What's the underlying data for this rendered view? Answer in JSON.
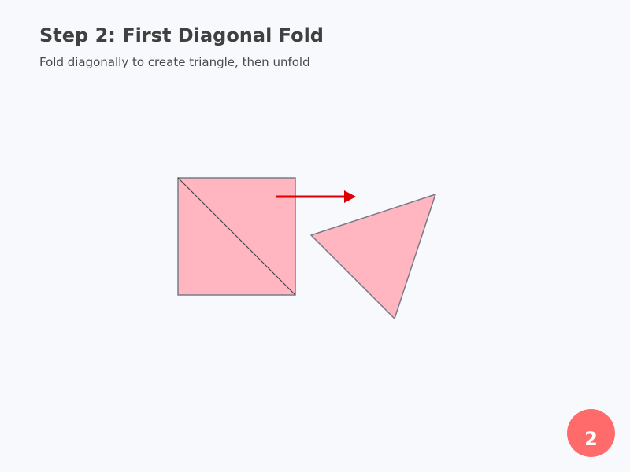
{
  "header": {
    "title": "Step 2: First Diagonal Fold",
    "instruction": "Fold diagonally to create triangle, then unfold"
  },
  "diagram": {
    "paper_color": "#ffb6c1",
    "edge_color": "#7a7a85",
    "crease_color": "#3a3a3a",
    "arrow_color": "#dd0000",
    "arrow_direction": "right"
  },
  "badge": {
    "step_number": "2",
    "color": "#ff6b6b"
  }
}
